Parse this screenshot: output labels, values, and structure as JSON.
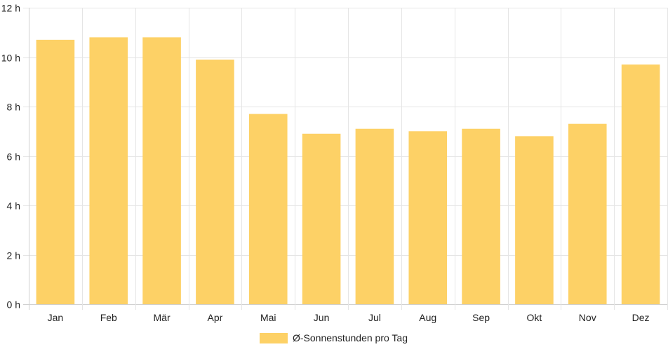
{
  "chart_data": {
    "type": "bar",
    "categories": [
      "Jan",
      "Feb",
      "Mär",
      "Apr",
      "Mai",
      "Jun",
      "Jul",
      "Aug",
      "Sep",
      "Okt",
      "Nov",
      "Dez"
    ],
    "series": [
      {
        "name": "Ø-Sonnenstunden pro Tag",
        "values": [
          10.7,
          10.8,
          10.8,
          9.9,
          7.7,
          6.9,
          7.1,
          7.0,
          7.1,
          6.8,
          7.3,
          9.7
        ],
        "color": "#fdd166"
      }
    ],
    "ylim": [
      0,
      12
    ],
    "yticks": [
      0,
      2,
      4,
      6,
      8,
      10,
      12
    ],
    "ytick_labels": [
      "0 h",
      "2 h",
      "4 h",
      "6 h",
      "8 h",
      "10 h",
      "12 h"
    ],
    "grid": true,
    "legend": "bottom-center"
  }
}
